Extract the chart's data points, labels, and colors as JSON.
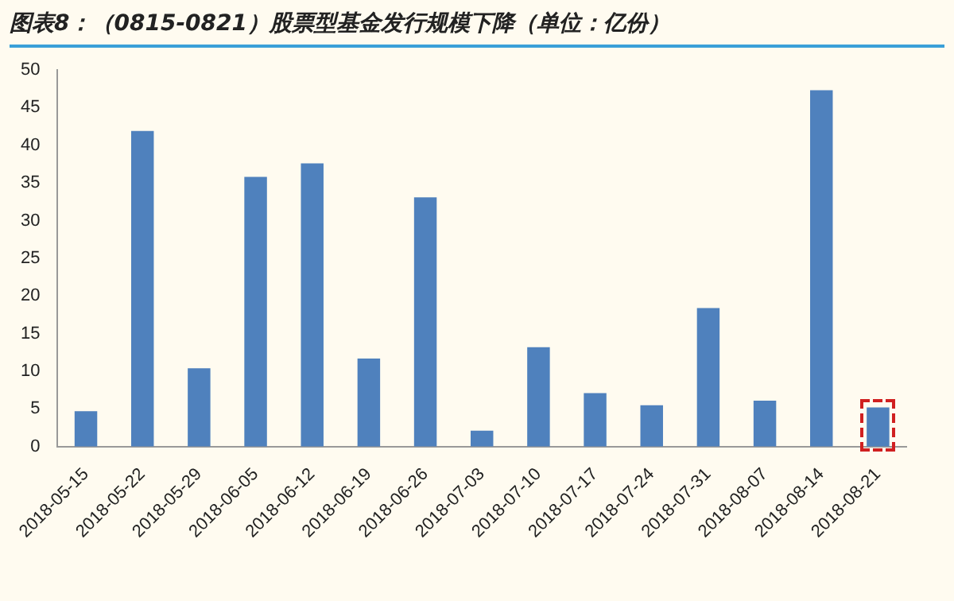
{
  "chart_data": {
    "type": "bar",
    "title": "图表8：（0815-0821）股票型基金发行规模下降（单位：亿份）",
    "categories": [
      "2018-05-15",
      "2018-05-22",
      "2018-05-29",
      "2018-06-05",
      "2018-06-12",
      "2018-06-19",
      "2018-06-26",
      "2018-07-03",
      "2018-07-10",
      "2018-07-17",
      "2018-07-24",
      "2018-07-31",
      "2018-08-07",
      "2018-08-14",
      "2018-08-21"
    ],
    "values": [
      4.7,
      41.9,
      10.4,
      35.8,
      37.6,
      11.7,
      33.1,
      2.1,
      13.2,
      7.1,
      5.5,
      18.4,
      6.1,
      47.3,
      5.2
    ],
    "color": "#4f81bd",
    "ylim": [
      0,
      50
    ],
    "yticks": [
      0,
      5,
      10,
      15,
      20,
      25,
      30,
      35,
      40,
      45,
      50
    ],
    "grid": false,
    "legend": false
  }
}
